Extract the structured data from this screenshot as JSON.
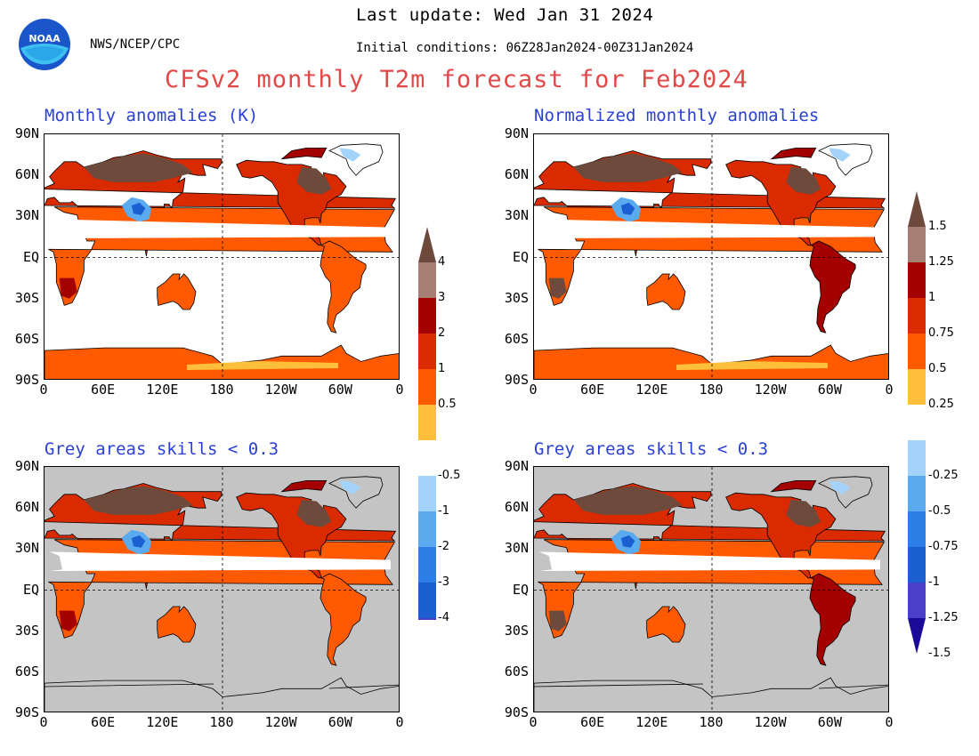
{
  "header": {
    "last_update": "Last update: Wed Jan 31 2024",
    "initial_conditions": "Initial conditions: 06Z28Jan2024-00Z31Jan2024",
    "agency": "NWS/NCEP/CPC",
    "logo_text": "NOAA",
    "title": "CFSv2 monthly T2m forecast for Feb2024"
  },
  "panels": [
    {
      "title": "Monthly anomalies (K)",
      "grey_mask": false
    },
    {
      "title": "Normalized monthly anomalies",
      "grey_mask": false
    },
    {
      "title": "Grey areas skills < 0.3",
      "grey_mask": true
    },
    {
      "title": "Grey areas skills < 0.3",
      "grey_mask": true
    }
  ],
  "axes": {
    "lat_labels": [
      "90N",
      "60N",
      "30N",
      "EQ",
      "30S",
      "60S",
      "90S"
    ],
    "lon_labels": [
      "0",
      "60E",
      "120E",
      "180",
      "120W",
      "60W",
      "0"
    ]
  },
  "colorbar_left": {
    "labels": [
      "4",
      "3",
      "2",
      "1",
      "0.5",
      "-0.5",
      "-1",
      "-2",
      "-3",
      "-4"
    ]
  },
  "colorbar_right": {
    "labels": [
      "1.5",
      "1.25",
      "1",
      "0.75",
      "0.5",
      "0.25",
      "-0.25",
      "-0.5",
      "-0.75",
      "-1",
      "-1.25",
      "-1.5"
    ]
  },
  "colors": {
    "title": "#e34848",
    "panel_title": "#2a3fd6",
    "grey_mask": "#c4c4c4",
    "warm": [
      "#ffbf3b",
      "#ff5a00",
      "#d92a00",
      "#a40000",
      "#a67e74",
      "#6e4a3c"
    ],
    "cool": [
      "#a3d3fb",
      "#5aaaf0",
      "#2d7fe6",
      "#1b5fd2",
      "#4a3fc8",
      "#1a0a9a"
    ]
  }
}
